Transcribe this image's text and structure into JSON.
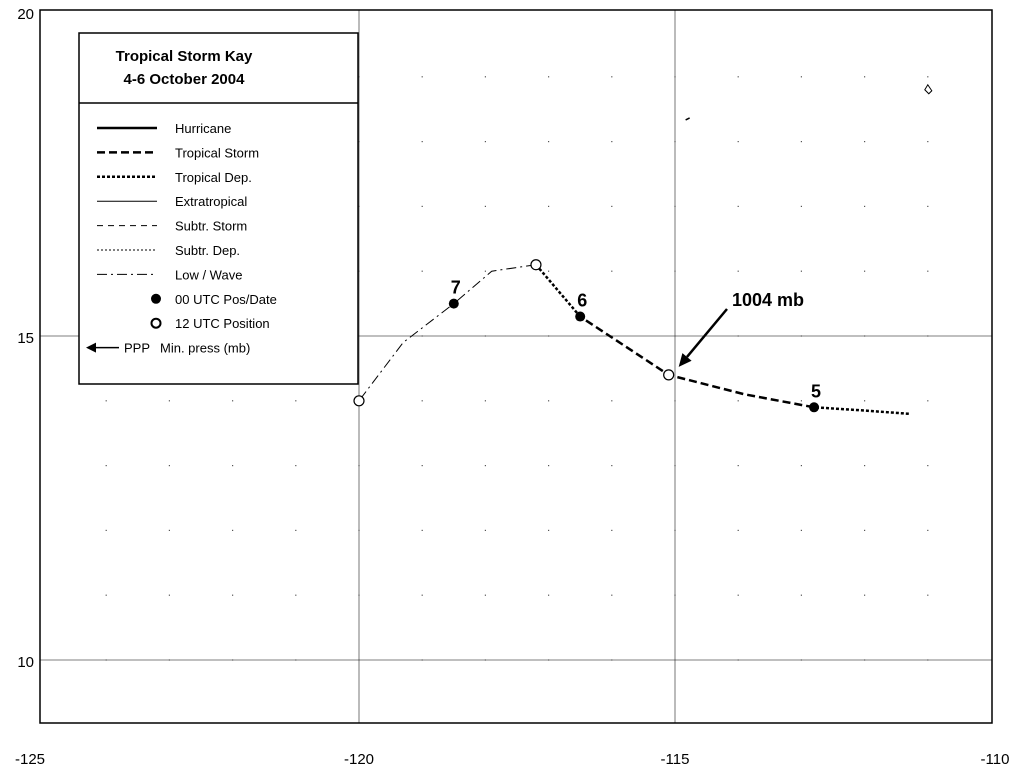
{
  "map": {
    "x_range": [
      -125,
      -110
    ],
    "y_range": [
      9,
      20
    ],
    "x_ticks": [
      {
        "value": -125,
        "label": "-125"
      },
      {
        "value": -120,
        "label": "-120"
      },
      {
        "value": -115,
        "label": "-115"
      },
      {
        "value": -110,
        "label": "-110"
      }
    ],
    "y_ticks": [
      {
        "value": 10,
        "label": "10"
      },
      {
        "value": 15,
        "label": "15"
      },
      {
        "value": 20,
        "label": "20"
      }
    ],
    "grid": true
  },
  "legend": {
    "title_line1": "Tropical Storm Kay",
    "title_line2": "4-6 October 2004",
    "items": [
      {
        "label": "Hurricane",
        "style": "hurricane"
      },
      {
        "label": "Tropical Storm",
        "style": "tropical-storm"
      },
      {
        "label": "Tropical Dep.",
        "style": "tropical-dep"
      },
      {
        "label": "Extratropical",
        "style": "extratropical"
      },
      {
        "label": "Subtr. Storm",
        "style": "subtr-storm"
      },
      {
        "label": "Subtr. Dep.",
        "style": "subtr-dep"
      },
      {
        "label": "Low / Wave",
        "style": "low-wave"
      },
      {
        "label": "00 UTC Pos/Date",
        "style": "filled-dot"
      },
      {
        "label": "12 UTC Position",
        "style": "open-dot"
      },
      {
        "label": "Min. press (mb)",
        "style": "pressure-arrow",
        "prefix": "PPP"
      }
    ]
  },
  "track": {
    "segments": [
      {
        "stage": "tropical-dep",
        "points": [
          [
            -111.3,
            13.8
          ],
          [
            -112.0,
            13.85
          ],
          [
            -112.8,
            13.9
          ]
        ]
      },
      {
        "stage": "tropical-storm",
        "points": [
          [
            -112.8,
            13.9
          ],
          [
            -113.9,
            14.1
          ],
          [
            -115.1,
            14.4
          ],
          [
            -116.5,
            15.3
          ]
        ]
      },
      {
        "stage": "tropical-dep",
        "points": [
          [
            -116.5,
            15.3
          ],
          [
            -117.2,
            16.1
          ]
        ]
      },
      {
        "stage": "low-wave",
        "points": [
          [
            -117.2,
            16.1
          ],
          [
            -117.9,
            16.0
          ],
          [
            -118.5,
            15.5
          ],
          [
            -119.3,
            14.9
          ],
          [
            -120.0,
            14.0
          ]
        ]
      }
    ],
    "positions": [
      {
        "lon": -112.8,
        "lat": 13.9,
        "kind": "00 UTC",
        "label": "5"
      },
      {
        "lon": -115.1,
        "lat": 14.4,
        "kind": "12 UTC",
        "label": ""
      },
      {
        "lon": -116.5,
        "lat": 15.3,
        "kind": "00 UTC",
        "label": "6"
      },
      {
        "lon": -117.2,
        "lat": 16.1,
        "kind": "12 UTC",
        "label": ""
      },
      {
        "lon": -118.5,
        "lat": 15.5,
        "kind": "00 UTC",
        "label": "7"
      },
      {
        "lon": -120.0,
        "lat": 14.0,
        "kind": "12 UTC",
        "label": ""
      }
    ],
    "min_pressure": {
      "label": "1004 mb",
      "lon": -115.1,
      "lat": 14.4
    }
  },
  "islands": [
    {
      "lon": -111.0,
      "lat": 18.8
    },
    {
      "lon": -114.8,
      "lat": 18.35
    }
  ]
}
